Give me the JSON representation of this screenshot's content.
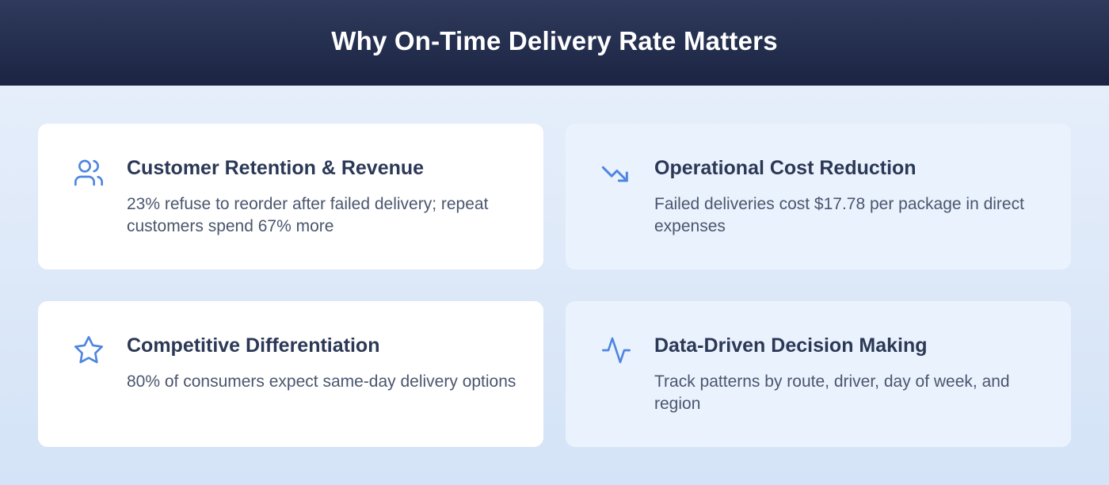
{
  "header": {
    "title": "Why On-Time Delivery Rate Matters"
  },
  "colors": {
    "accent": "#4f86e0",
    "header_bg": "#1b2442",
    "title_text": "#2b3856"
  },
  "cards": [
    {
      "icon": "users-icon",
      "title": "Customer Retention & Revenue",
      "desc": "23% refuse to reorder after failed delivery; repeat customers spend 67% more"
    },
    {
      "icon": "trending-down-icon",
      "title": "Operational Cost Reduction",
      "desc": "Failed deliveries cost $17.78 per package in direct expenses"
    },
    {
      "icon": "star-icon",
      "title": "Competitive Differentiation",
      "desc": "80% of consumers expect same-day delivery options"
    },
    {
      "icon": "activity-icon",
      "title": "Data-Driven Decision Making",
      "desc": "Track patterns by route, driver, day of week, and region"
    }
  ]
}
